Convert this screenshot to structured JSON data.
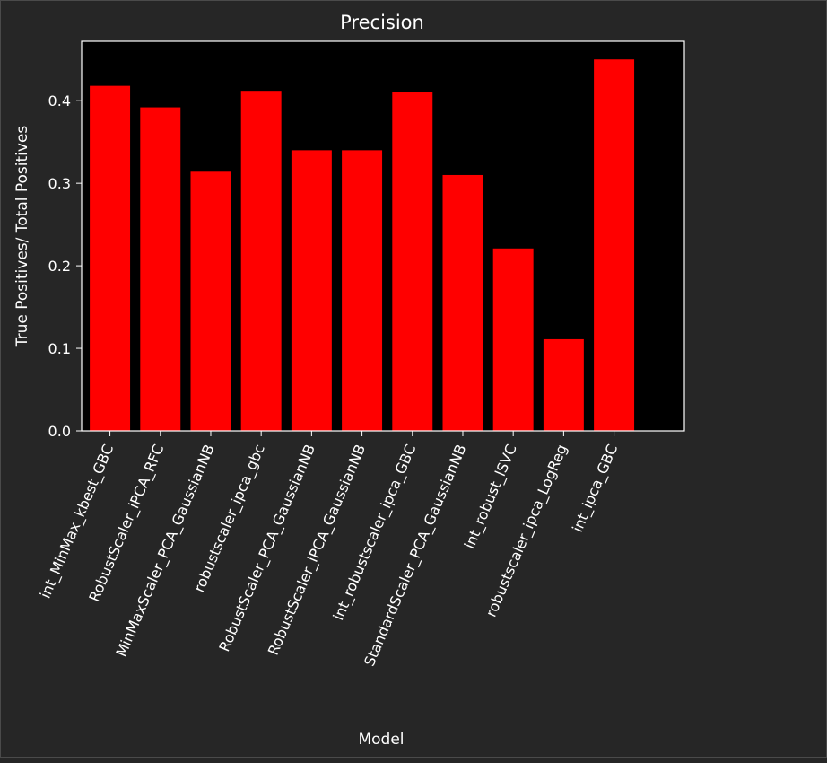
{
  "chart_data": {
    "type": "bar",
    "title": "Precision",
    "xlabel": "Model",
    "ylabel": "True Positives/ Total Positives",
    "categories": [
      "int_MinMax_kbest_GBC",
      "RobustScaler_iPCA_RFC",
      "MinMaxScaler_PCA_GaussianNB",
      "robustscaler_ipca_gbc",
      "RobustScaler_PCA_GaussianNB",
      "RobustScaler_iPCA_GaussianNB",
      "int_robustscaler_ipca_GBC",
      "StandardScaler_PCA_GaussianNB",
      "int_robust_lSVC",
      "robustscaler_ipca_LogReg",
      "int_ipca_GBC"
    ],
    "values": [
      0.418,
      0.392,
      0.314,
      0.412,
      0.34,
      0.34,
      0.41,
      0.31,
      0.221,
      0.111,
      0.45
    ],
    "yticks": [
      "0.0",
      "0.1",
      "0.2",
      "0.3",
      "0.4"
    ],
    "ylim": [
      0,
      0.472
    ],
    "bar_color": "#ff0000",
    "plot_background": "#000000",
    "figure_background": "#262626",
    "grid": false,
    "legend": "none"
  }
}
